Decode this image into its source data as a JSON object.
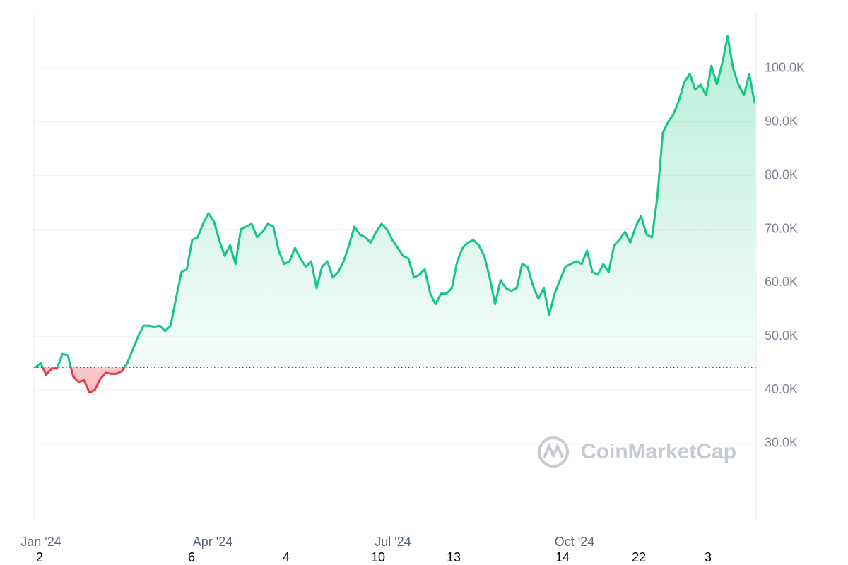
{
  "chart_data": {
    "type": "line",
    "watermark": "CoinMarketCap",
    "values": [
      44200,
      45000,
      42800,
      44000,
      44000,
      46700,
      46500,
      42500,
      41500,
      41800,
      39500,
      40000,
      42000,
      43200,
      43000,
      43000,
      43500,
      45000,
      47500,
      50000,
      52000,
      52000,
      51800,
      52000,
      51000,
      52000,
      57000,
      62000,
      62500,
      68000,
      68500,
      71000,
      73000,
      71500,
      68000,
      65000,
      67000,
      63500,
      70000,
      70500,
      71000,
      68500,
      69500,
      71000,
      70500,
      66000,
      63500,
      64000,
      66500,
      64500,
      63000,
      64000,
      59000,
      63000,
      64000,
      61000,
      62000,
      64000,
      67000,
      70500,
      69000,
      68500,
      67500,
      69500,
      71000,
      70000,
      68000,
      66500,
      65000,
      64500,
      61000,
      61500,
      62500,
      58000,
      56000,
      58000,
      58000,
      59000,
      64000,
      66500,
      67500,
      68000,
      67000,
      65000,
      61000,
      56000,
      60500,
      59000,
      58500,
      59000,
      63500,
      63000,
      59500,
      57000,
      59000,
      54000,
      58000,
      60500,
      63000,
      63500,
      64000,
      63500,
      66000,
      62000,
      61500,
      63500,
      62000,
      67000,
      68000,
      69500,
      67500,
      70500,
      72500,
      69000,
      68500,
      76000,
      88000,
      90000,
      91500,
      94000,
      97500,
      99000,
      96000,
      97000,
      95000,
      100500,
      97000,
      101000,
      106000,
      100000,
      97000,
      95000,
      99000,
      93500
    ],
    "color": "#16c784",
    "below_color": "#ea3943",
    "baseline": 44200,
    "ylim": [
      15500,
      110400
    ],
    "yticks": [
      {
        "value": 30000,
        "label": "30.0K"
      },
      {
        "value": 40000,
        "label": "40.0K"
      },
      {
        "value": 50000,
        "label": "50.0K"
      },
      {
        "value": 60000,
        "label": "60.0K"
      },
      {
        "value": 70000,
        "label": "70.0K"
      },
      {
        "value": 80000,
        "label": "80.0K"
      },
      {
        "value": 90000,
        "label": "90.0K"
      },
      {
        "value": 100000,
        "label": "100.0K"
      }
    ],
    "grid": true,
    "x_labels": [
      "Jan '24",
      "Apr '24",
      "Jul '24",
      "Oct '24"
    ],
    "x_labels_2": [
      "2",
      "6",
      "4",
      "10",
      "13",
      "14",
      "22",
      "3"
    ]
  }
}
